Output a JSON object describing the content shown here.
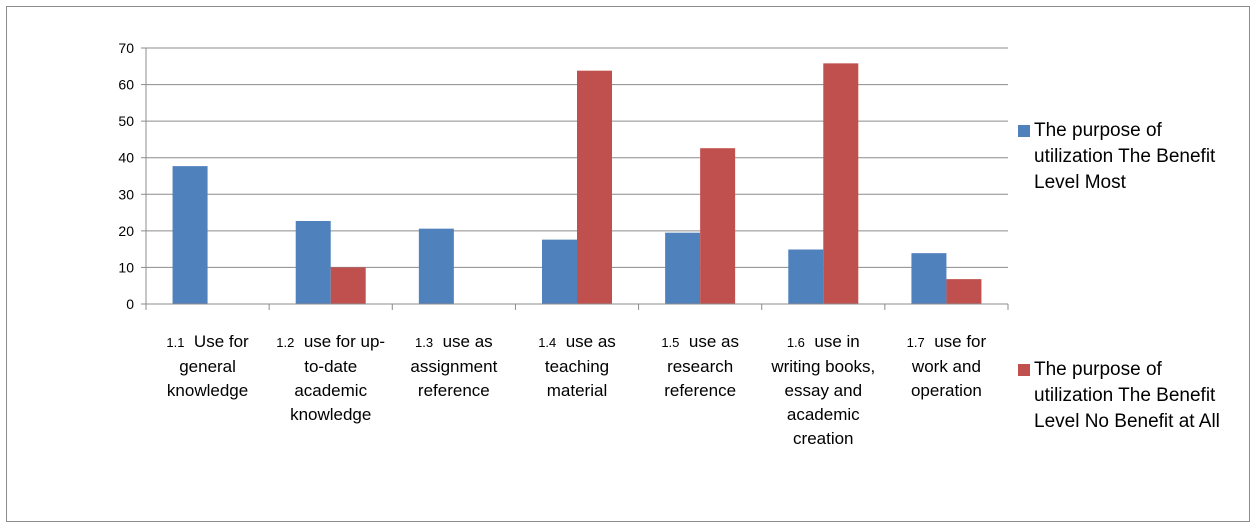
{
  "chart_data": {
    "type": "bar",
    "categories": [
      {
        "num": "1.1",
        "text": "Use for general knowledge"
      },
      {
        "num": "1.2",
        "text": "use for up-to-date academic knowledge"
      },
      {
        "num": "1.3",
        "text": "use as assignment reference"
      },
      {
        "num": "1.4",
        "text": "use as teaching material"
      },
      {
        "num": "1.5",
        "text": "use as research reference"
      },
      {
        "num": "1.6",
        "text": "use in writing books, essay and academic creation"
      },
      {
        "num": "1.7",
        "text": "use for work and operation"
      }
    ],
    "series": [
      {
        "name": "The purpose of utilization  The Benefit  Level Most",
        "color": "#4F81BD",
        "values": [
          37.7,
          22.7,
          20.6,
          17.6,
          19.5,
          14.9,
          13.9
        ]
      },
      {
        "name": "The purpose of utilization  The Benefit  Level No Benefit at All",
        "color": "#C0504D",
        "values": [
          0,
          10.0,
          0,
          63.8,
          42.6,
          65.8,
          6.8
        ]
      }
    ],
    "ylim": [
      0,
      70
    ],
    "yticks": [
      "0",
      "10",
      "20",
      "30",
      "40",
      "50",
      "60",
      "70"
    ],
    "grid": true,
    "legend": "right"
  }
}
